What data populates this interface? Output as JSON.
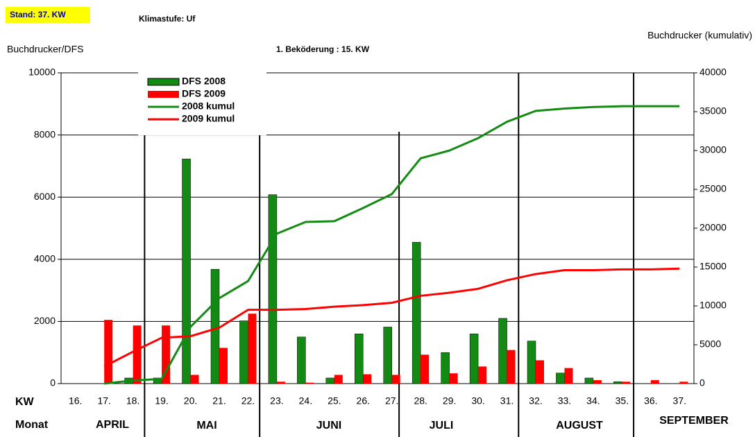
{
  "chart_data": {
    "type": "bar",
    "stand": "Stand: 37. KW",
    "klimastufe": "Klimastufe: Uf",
    "y_label": "Buchdrucker/DFS",
    "subtitle": "1. Beköderung : 15. KW",
    "y2_label": "Buchdrucker (kumulativ)",
    "kw_label": "KW",
    "month_label": "Monat",
    "months": [
      "APRIL",
      "MAI",
      "JUNI",
      "JULI",
      "AUGUST",
      "SEPTEMBER"
    ],
    "categories": [
      "16.",
      "17.",
      "18.",
      "19.",
      "20.",
      "21.",
      "22.",
      "23.",
      "24.",
      "25.",
      "26.",
      "27.",
      "28.",
      "29.",
      "30.",
      "31.",
      "32.",
      "33.",
      "34.",
      "35.",
      "36.",
      "37."
    ],
    "ylim": [
      0,
      10000
    ],
    "yticks": [
      0,
      2000,
      4000,
      6000,
      8000,
      10000
    ],
    "y2lim": [
      0,
      40000
    ],
    "y2ticks": [
      0,
      5000,
      10000,
      15000,
      20000,
      25000,
      30000,
      35000,
      40000
    ],
    "grid": true,
    "series": [
      {
        "name": "DFS 2008",
        "type": "bar",
        "color": "#138a13",
        "values": [
          0,
          0,
          180,
          180,
          7230,
          3680,
          2020,
          6080,
          1500,
          180,
          1600,
          1820,
          4550,
          1000,
          1600,
          2100,
          1370,
          340,
          180,
          60,
          0,
          0
        ]
      },
      {
        "name": "DFS 2009",
        "type": "bar",
        "color": "#ff0000",
        "values": [
          0,
          2050,
          1870,
          1870,
          280,
          1150,
          2250,
          60,
          30,
          280,
          300,
          280,
          930,
          330,
          550,
          1080,
          750,
          500,
          110,
          60,
          110,
          60
        ]
      },
      {
        "name": "2008 kumul",
        "type": "line",
        "axis": "y2",
        "color": "#138a13",
        "values": [
          null,
          0,
          400,
          600,
          7300,
          11000,
          13200,
          19300,
          20800,
          20900,
          22600,
          24400,
          29000,
          30000,
          31600,
          33700,
          35100,
          35400,
          35600,
          35700,
          35700,
          35700
        ]
      },
      {
        "name": "2009 kumul",
        "type": "line",
        "axis": "y2",
        "color": "#ff0000",
        "values": [
          null,
          2200,
          4100,
          5900,
          6100,
          7200,
          9500,
          9500,
          9600,
          9900,
          10100,
          10400,
          11300,
          11700,
          12200,
          13300,
          14100,
          14600,
          14600,
          14700,
          14700,
          14800
        ]
      }
    ]
  }
}
